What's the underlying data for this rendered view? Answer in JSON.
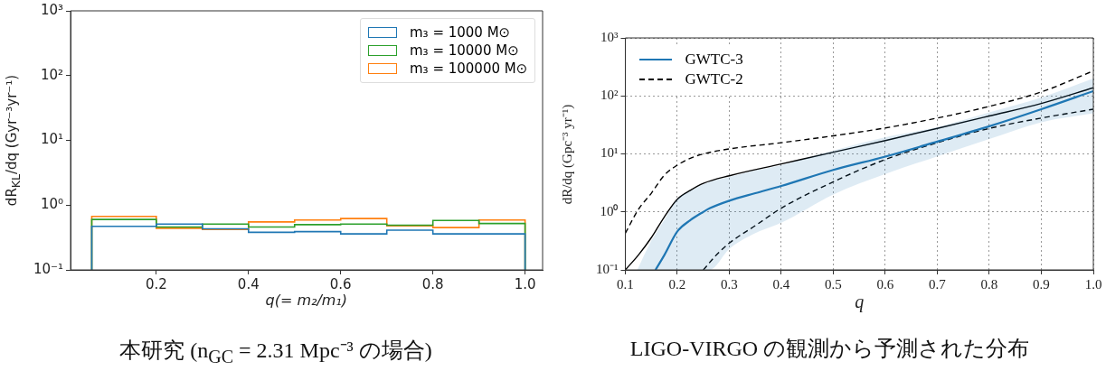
{
  "chart_data": [
    {
      "type": "histogram",
      "xlabel": "q(= m₂/m₁)",
      "ylabel": "dR$_{KL}$/dq (Gyr⁻³yr⁻¹)",
      "annotations": [
        "本研究 (n$_{GC}$ = 2.31 Mpc⁻³ の場合)"
      ],
      "bins": [
        0.06,
        0.2,
        0.3,
        0.4,
        0.5,
        0.6,
        0.7,
        0.8,
        0.9,
        1.0
      ],
      "series": [
        {
          "name": "m₃ = 1000 M⊙",
          "color": "#1f77b4",
          "values": [
            0.47,
            0.51,
            0.43,
            0.38,
            0.39,
            0.36,
            0.41,
            0.36,
            0.36
          ]
        },
        {
          "name": "m₃ = 10000 M⊙",
          "color": "#2ca02c",
          "values": [
            0.6,
            0.46,
            0.51,
            0.46,
            0.5,
            0.51,
            0.49,
            0.58,
            0.52
          ]
        },
        {
          "name": "m₃ = 100000 M⊙",
          "color": "#ff7f0e",
          "values": [
            0.67,
            0.44,
            0.42,
            0.55,
            0.59,
            0.62,
            0.48,
            0.45,
            0.59
          ]
        }
      ],
      "xlim": [
        0.014,
        1.038
      ],
      "xticks": [
        0.2,
        0.4,
        0.6,
        0.8,
        {
          "value": 1,
          "label": "1.0"
        }
      ],
      "ylim": [
        0.1,
        1000
      ],
      "yticks": [
        {
          "value": 0.1,
          "label": "10⁻¹"
        },
        {
          "value": 1,
          "label": "10⁰"
        },
        {
          "value": 10,
          "label": "10¹"
        },
        {
          "value": 100,
          "label": "10²"
        },
        {
          "value": 1000,
          "label": "10³"
        }
      ],
      "log": true,
      "legend": "top right"
    },
    {
      "type": "line",
      "xlabel": "q",
      "ylabel": "dR/dq (Gpc⁻³ yr⁻¹)",
      "annotations": [
        "LIGO-VIRGO の観測から予測された分布"
      ],
      "series": [
        {
          "name": "GWTC-3",
          "color": "#1f77b4",
          "x": [
            0.123,
            0.15,
            0.158,
            0.175,
            0.2,
            0.225,
            0.25,
            0.262,
            0.3,
            0.35,
            0.4,
            0.5,
            0.6,
            0.7,
            0.8,
            0.9,
            1.0
          ],
          "values": [
            null,
            null,
            0.1,
            0.18,
            0.46,
            0.72,
            1.0,
            1.15,
            1.56,
            2.1,
            2.8,
            5.3,
            9.0,
            16.3,
            30,
            59,
            121
          ],
          "upper": [
            0.1,
            0.32,
            0.42,
            0.73,
            1.65,
            2.3,
            3.0,
            3.3,
            4.0,
            5.2,
            6.4,
            11.4,
            19.4,
            29,
            52,
            94,
            200
          ],
          "lower": [
            0.1,
            0.1,
            0.1,
            0.1,
            0.1,
            0.1,
            0.1,
            0.1,
            0.23,
            0.43,
            0.65,
            2.0,
            4.5,
            9.1,
            18,
            35,
            50
          ]
        },
        {
          "name": "GWTC-2",
          "color": "#000000",
          "line_style": "dashed",
          "x": [
            0.1,
            0.125,
            0.15,
            0.175,
            0.2,
            0.225,
            0.25,
            0.3,
            0.4,
            0.5,
            0.6,
            0.7,
            0.8,
            0.9,
            1.0
          ],
          "values": [
            0.43,
            1.1,
            2.1,
            4.3,
            6.4,
            8.4,
            10,
            12.2,
            15.6,
            20.5,
            28,
            41.5,
            66,
            117,
            270
          ]
        },
        {
          "color": "#000000",
          "x": [
            0.1,
            0.125,
            0.15,
            0.175,
            0.2,
            0.225,
            0.25,
            0.3,
            0.4,
            0.5,
            0.6,
            0.7,
            0.8,
            0.9,
            1.0
          ],
          "values": [
            0.1,
            0.18,
            0.36,
            0.82,
            1.65,
            2.35,
            3.1,
            4.2,
            6.7,
            10.7,
            17,
            27.5,
            45,
            74,
            138
          ]
        },
        {
          "color": "#000000",
          "line_style": "dashed",
          "x": [
            0.25,
            0.275,
            0.3,
            0.35,
            0.4,
            0.5,
            0.6,
            0.7,
            0.8,
            0.9,
            1.0
          ],
          "values": [
            0.1,
            0.18,
            0.29,
            0.58,
            1.16,
            3.3,
            8.0,
            15.6,
            27.5,
            41.5,
            59
          ]
        }
      ],
      "xlim": [
        0.1,
        1
      ],
      "xticks": [
        0.1,
        0.2,
        0.3,
        0.4,
        0.5,
        0.6,
        0.7,
        0.8,
        0.9,
        {
          "value": 1,
          "label": "1.0"
        }
      ],
      "ylim": [
        0.1,
        1000
      ],
      "yticks": [
        {
          "value": 0.1,
          "label": "10⁻¹"
        },
        {
          "value": 1,
          "label": "10⁰"
        },
        {
          "value": 10,
          "label": "10¹"
        },
        {
          "value": 100,
          "label": "10²"
        },
        {
          "value": 1000,
          "label": "10³"
        }
      ],
      "log": true,
      "grid": true,
      "legend": "top left"
    }
  ]
}
